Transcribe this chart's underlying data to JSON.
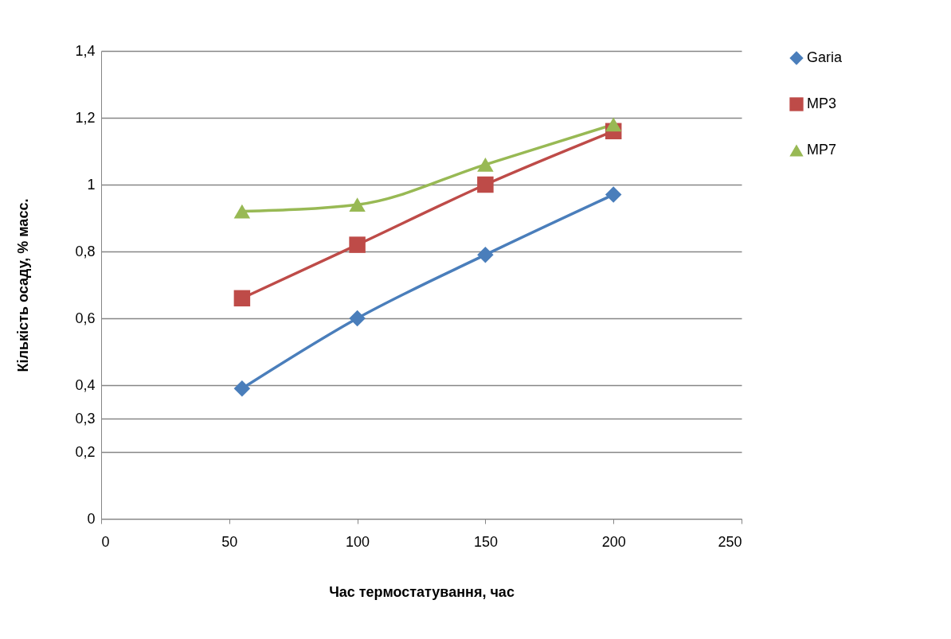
{
  "chart_data": {
    "type": "line",
    "xlabel": "Час термостатування, час",
    "ylabel": "Кількість осаду, % масс.",
    "xlim": [
      0,
      250
    ],
    "xticks": [
      0,
      50,
      100,
      150,
      200,
      250
    ],
    "ylim": [
      0,
      1.4
    ],
    "yticks": [
      0,
      {
        "value": 0.2,
        "label": "0,2"
      },
      {
        "value": 0.3,
        "label": "0,3"
      },
      {
        "value": 0.4,
        "label": "0,4"
      },
      {
        "value": 0.6,
        "label": "0,6"
      },
      {
        "value": 0.8,
        "label": "0,8"
      },
      1,
      {
        "value": 1.2,
        "label": "1,2"
      },
      {
        "value": 1.4,
        "label": "1,4"
      }
    ],
    "grid": "y",
    "legend": "right",
    "line_style": "solid",
    "series": [
      {
        "name": "Garia",
        "color": "#4a7ebb",
        "marker": "diamond",
        "x": [
          55,
          100,
          150,
          200
        ],
        "values": [
          0.39,
          0.6,
          0.79,
          0.97
        ]
      },
      {
        "name": "MP3",
        "color": "#be4b48",
        "marker": "square",
        "x": [
          55,
          100,
          150,
          200
        ],
        "values": [
          0.66,
          0.82,
          1.0,
          1.16
        ]
      },
      {
        "name": "MP7",
        "color": "#98b954",
        "marker": "triangle",
        "x": [
          55,
          100,
          150,
          200
        ],
        "values": [
          0.92,
          0.94,
          1.06,
          1.18
        ]
      }
    ]
  }
}
